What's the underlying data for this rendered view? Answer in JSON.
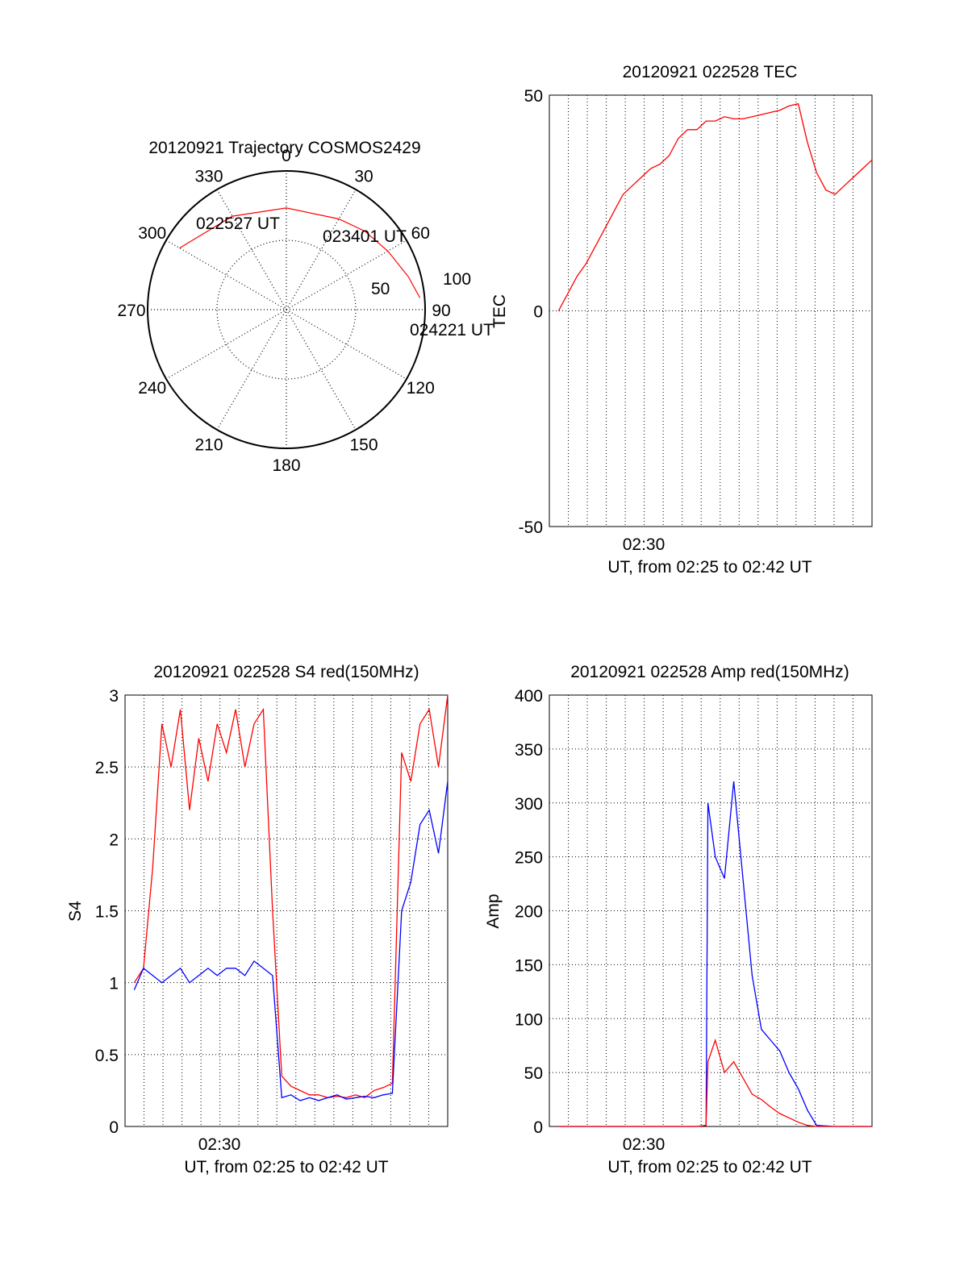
{
  "chart_data": [
    {
      "id": "polar",
      "type": "polar",
      "title": "20120921 Trajectory COSMOS2429",
      "angle_labels": [
        "0",
        "30",
        "60",
        "90",
        "120",
        "150",
        "180",
        "210",
        "240",
        "270",
        "300",
        "330"
      ],
      "radius_labels": [
        "50",
        "100"
      ],
      "trajectory": {
        "color": "#ff0000",
        "points": [
          {
            "az": 300,
            "el": 10
          },
          {
            "az": 330,
            "el": 20
          },
          {
            "az": 0,
            "el": 24
          },
          {
            "az": 30,
            "el": 22
          },
          {
            "az": 45,
            "el": 18
          },
          {
            "az": 60,
            "el": 14
          },
          {
            "az": 75,
            "el": 8
          },
          {
            "az": 85,
            "el": 3
          }
        ]
      },
      "annotations": [
        "022527 UT",
        "023401 UT",
        "024221 UT"
      ]
    },
    {
      "id": "tec",
      "type": "line",
      "title": "20120921 022528 TEC",
      "ylabel": "TEC",
      "xlabel": "UT, from 02:25 to 02:42 UT",
      "x_tick_label": "02:30",
      "xlim": [
        0,
        17.5
      ],
      "ylim": [
        -50,
        50
      ],
      "yticks": [
        "50",
        "0",
        "-50"
      ],
      "grid": "vertical",
      "series": [
        {
          "color": "#ff0000",
          "x": [
            0.5,
            1.0,
            1.5,
            2.0,
            2.5,
            3.0,
            3.5,
            4.0,
            4.5,
            5.0,
            5.5,
            6.0,
            6.5,
            7.0,
            7.5,
            8.0,
            8.5,
            9.0,
            9.5,
            10.0,
            10.5,
            11.0,
            11.5,
            12.0,
            12.5,
            13.0,
            13.5,
            14.0,
            14.5,
            15.0,
            15.5,
            16.0,
            16.5,
            17.0,
            17.5
          ],
          "values": [
            0,
            4,
            8,
            11,
            15,
            19,
            23,
            27,
            29,
            31,
            33,
            34,
            36,
            40,
            42,
            42,
            44,
            44,
            45,
            44.5,
            44.5,
            45,
            45.5,
            46,
            46.5,
            47.5,
            48,
            39,
            32,
            28,
            27,
            29,
            31,
            33,
            35
          ]
        }
      ]
    },
    {
      "id": "s4",
      "type": "line",
      "title": "20120921 022528 S4 red(150MHz)",
      "ylabel": "S4",
      "xlabel": "UT, from 02:25 to 02:42 UT",
      "x_tick_label": "02:30",
      "xlim": [
        0,
        17.5
      ],
      "ylim": [
        0,
        3
      ],
      "yticks": [
        "3",
        "2.5",
        "2",
        "1.5",
        "1",
        "0.5",
        "0"
      ],
      "grid": "both",
      "series": [
        {
          "name": "red",
          "color": "#ff0000",
          "x": [
            0.5,
            1.0,
            1.5,
            2.0,
            2.5,
            3.0,
            3.5,
            4.0,
            4.5,
            5.0,
            5.5,
            6.0,
            6.5,
            7.0,
            7.5,
            8.0,
            8.5,
            9.0,
            9.5,
            10.0,
            10.5,
            11.0,
            11.5,
            12.0,
            12.5,
            13.0,
            13.5,
            14.0,
            14.5,
            15.0,
            15.5,
            16.0,
            16.5,
            17.0,
            17.5
          ],
          "values": [
            1.0,
            1.1,
            1.8,
            2.8,
            2.5,
            2.9,
            2.2,
            2.7,
            2.4,
            2.8,
            2.6,
            2.9,
            2.5,
            2.8,
            2.9,
            1.5,
            0.35,
            0.28,
            0.25,
            0.22,
            0.22,
            0.2,
            0.21,
            0.2,
            0.22,
            0.2,
            0.25,
            0.27,
            0.3,
            2.6,
            2.4,
            2.8,
            2.9,
            2.5,
            3.0
          ]
        },
        {
          "name": "blue",
          "color": "#0000ff",
          "x": [
            0.5,
            1.0,
            1.5,
            2.0,
            2.5,
            3.0,
            3.5,
            4.0,
            4.5,
            5.0,
            5.5,
            6.0,
            6.5,
            7.0,
            7.5,
            8.0,
            8.5,
            9.0,
            9.5,
            10.0,
            10.5,
            11.0,
            11.5,
            12.0,
            12.5,
            13.0,
            13.5,
            14.0,
            14.5,
            15.0,
            15.5,
            16.0,
            16.5,
            17.0,
            17.5
          ],
          "values": [
            0.95,
            1.1,
            1.05,
            1.0,
            1.05,
            1.1,
            1.0,
            1.05,
            1.1,
            1.05,
            1.1,
            1.1,
            1.05,
            1.15,
            1.1,
            1.05,
            0.2,
            0.22,
            0.18,
            0.2,
            0.18,
            0.2,
            0.22,
            0.19,
            0.2,
            0.21,
            0.2,
            0.22,
            0.23,
            1.5,
            1.7,
            2.1,
            2.2,
            1.9,
            2.4
          ]
        }
      ]
    },
    {
      "id": "amp",
      "type": "line",
      "title": "20120921 022528 Amp red(150MHz)",
      "ylabel": "Amp",
      "xlabel": "UT, from 02:25 to 02:42 UT",
      "x_tick_label": "02:30",
      "xlim": [
        0,
        17.5
      ],
      "ylim": [
        0,
        400
      ],
      "yticks": [
        "400",
        "350",
        "300",
        "250",
        "200",
        "150",
        "100",
        "50",
        "0"
      ],
      "grid": "both",
      "series": [
        {
          "name": "blue",
          "color": "#0000ff",
          "x": [
            0.5,
            1.5,
            2.5,
            3.5,
            4.5,
            5.5,
            6.5,
            7.5,
            8.0,
            8.5,
            8.6,
            9.0,
            9.5,
            10.0,
            10.5,
            11.0,
            11.5,
            12.0,
            12.5,
            13.0,
            13.5,
            14.0,
            14.5,
            15.5,
            16.5,
            17.5
          ],
          "values": [
            0,
            0,
            0,
            0,
            0,
            0,
            0,
            0,
            0,
            1,
            300,
            250,
            230,
            320,
            230,
            140,
            90,
            80,
            70,
            50,
            35,
            15,
            1,
            0,
            0,
            0
          ]
        },
        {
          "name": "red",
          "color": "#ff0000",
          "x": [
            0.5,
            1.5,
            2.5,
            3.5,
            4.5,
            5.5,
            6.5,
            7.5,
            8.0,
            8.5,
            8.6,
            9.0,
            9.5,
            10.0,
            10.5,
            11.0,
            11.5,
            12.0,
            12.5,
            13.0,
            13.5,
            14.0,
            14.5,
            15.5,
            16.5,
            17.5
          ],
          "values": [
            0,
            0,
            0,
            0,
            0,
            0,
            0,
            0,
            0,
            1,
            60,
            80,
            50,
            60,
            45,
            30,
            25,
            18,
            12,
            8,
            4,
            1,
            0,
            0,
            0,
            0
          ]
        }
      ]
    }
  ]
}
